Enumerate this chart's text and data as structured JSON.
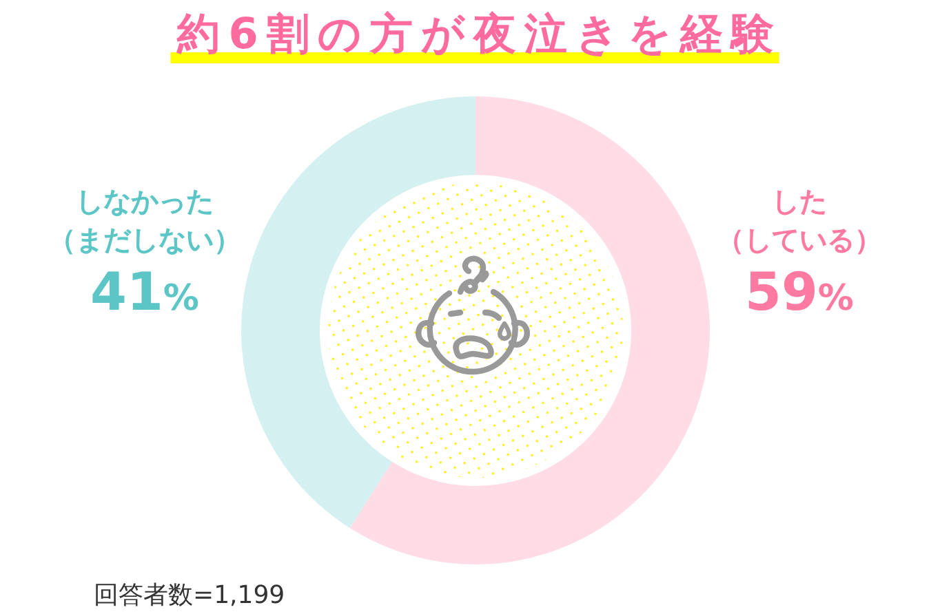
{
  "chart_data": {
    "type": "donut",
    "title": "約6割の方が夜泣きを経験",
    "categories": [
      "した（している）",
      "しなかった（まだしない）"
    ],
    "values": [
      59,
      41
    ],
    "colors": [
      "#ffdce6",
      "#d4f0f0"
    ],
    "value_labels": [
      "59%",
      "41%"
    ],
    "annotations": [
      "回答者数=1,199"
    ]
  }
}
